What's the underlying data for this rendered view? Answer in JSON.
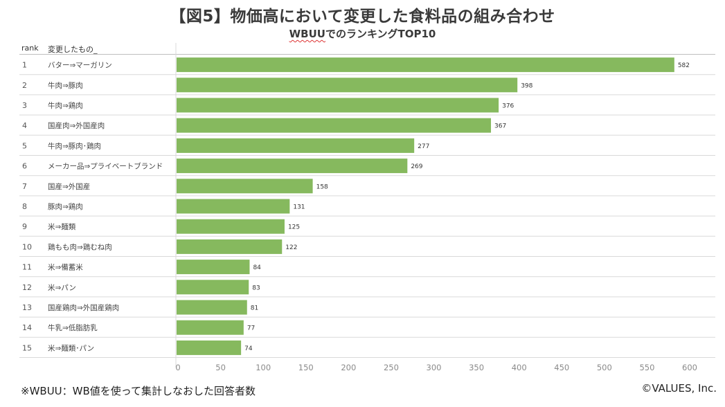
{
  "title": "【図5】物価高において変更した食料品の組み合わせ",
  "subtitle_prefix": "WBUU",
  "subtitle_suffix": "でのランキングTOP10",
  "col_rank_header": "rank",
  "col_item_header": "変更したもの_",
  "footnote": "※WBUU：WB値を使って集計しなおした回答者数",
  "copyright": "©VALUES, Inc.",
  "colors": {
    "bar": "#86b95e",
    "grid": "#d9d9d9",
    "text": "#333333"
  },
  "chart_data": {
    "type": "bar",
    "orientation": "horizontal",
    "ranks": [
      "1",
      "2",
      "3",
      "4",
      "5",
      "6",
      "7",
      "8",
      "9",
      "10",
      "11",
      "12",
      "13",
      "14",
      "15"
    ],
    "categories": [
      "バター⇒マーガリン",
      "牛肉⇒豚肉",
      "牛肉⇒鶏肉",
      "国産肉⇒外国産肉",
      "牛肉⇒豚肉･鶏肉",
      "メーカー品⇒プライベートブランド",
      "国産⇒外国産",
      "豚肉⇒鶏肉",
      "米⇒麺類",
      "鶏もも肉⇒鶏むね肉",
      "米⇒備蓄米",
      "米⇒パン",
      "国産鶏肉⇒外国産鶏肉",
      "牛乳⇒低脂肪乳",
      "米⇒麺類･パン"
    ],
    "values": [
      582,
      398,
      376,
      367,
      277,
      269,
      158,
      131,
      125,
      122,
      84,
      83,
      81,
      77,
      74
    ],
    "xlim": [
      0,
      600
    ],
    "xticks": [
      "0",
      "50",
      "100",
      "150",
      "200",
      "250",
      "300",
      "350",
      "400",
      "450",
      "500",
      "550",
      "600"
    ],
    "grid": true
  }
}
